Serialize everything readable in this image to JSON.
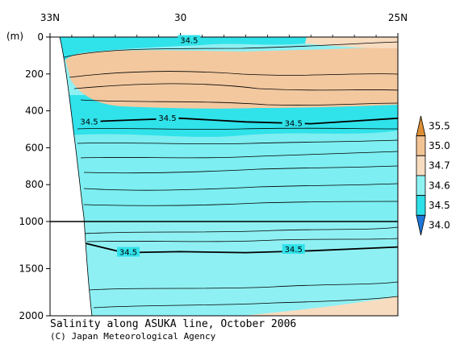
{
  "chart_data": {
    "type": "contour",
    "title": "Salinity along ASUKA line, October 2006",
    "credit": "(C) Japan Meteorological Agency",
    "ylabel": "(m)",
    "x_ticks": [
      "33N",
      "30",
      "25N"
    ],
    "x_tick_lats": [
      33,
      30,
      25
    ],
    "xlim": [
      33,
      25
    ],
    "y_upper_ticks": [
      "0",
      "200",
      "400",
      "600",
      "800",
      "1000"
    ],
    "y_lower_ticks": [
      "1500",
      "2000"
    ],
    "y_upper_range": [
      0,
      1000
    ],
    "y_lower_range": [
      1000,
      2000
    ],
    "legend_levels": [
      "35.5",
      "35.0",
      "34.7",
      "34.6",
      "34.5",
      "34.0"
    ],
    "legend_colors": [
      "#dd8f35",
      "#f2c393",
      "#f8dcc0",
      "#8ff2f2",
      "#2ee0e8",
      "#1f78d8"
    ],
    "background_colors": {
      "upper_layer": "#f3c89f",
      "surface_high": "#f8dcc0",
      "surface_low": "#30e2ea",
      "intermediate": "#30e2ea",
      "below_345": "#7deef1",
      "deep": "#8ff0f3"
    },
    "contour_labels": [
      {
        "text": "34.5",
        "lat": 29.8,
        "depth": 20
      },
      {
        "text": "34.5",
        "lat": 32.1,
        "depth": 460
      },
      {
        "text": "34.5",
        "lat": 30.3,
        "depth": 440
      },
      {
        "text": "34.5",
        "lat": 27.4,
        "depth": 470
      },
      {
        "text": "34.5",
        "lat": 31.2,
        "depth": 1330
      },
      {
        "text": "34.5",
        "lat": 27.4,
        "depth": 1300
      }
    ],
    "salinity_345_contour_upper": [
      {
        "lat": 32.2,
        "depth": 460
      },
      {
        "lat": 31.2,
        "depth": 450
      },
      {
        "lat": 30.0,
        "depth": 440
      },
      {
        "lat": 28.5,
        "depth": 460
      },
      {
        "lat": 27.0,
        "depth": 470
      },
      {
        "lat": 25.0,
        "depth": 440
      }
    ],
    "salinity_345_contour_lower": [
      {
        "lat": 32.2,
        "depth": 1230
      },
      {
        "lat": 31.3,
        "depth": 1330
      },
      {
        "lat": 30.0,
        "depth": 1320
      },
      {
        "lat": 28.5,
        "depth": 1330
      },
      {
        "lat": 27.0,
        "depth": 1310
      },
      {
        "lat": 25.0,
        "depth": 1270
      }
    ]
  }
}
